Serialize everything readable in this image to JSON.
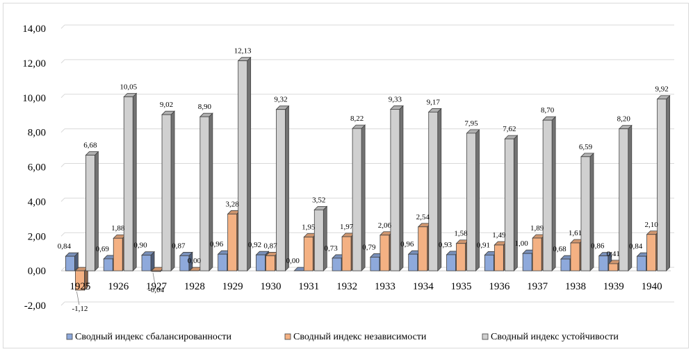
{
  "chart_data": {
    "type": "bar",
    "categories": [
      "1925",
      "1926",
      "1927",
      "1928",
      "1929",
      "1930",
      "1931",
      "1932",
      "1933",
      "1934",
      "1935",
      "1936",
      "1937",
      "1938",
      "1939",
      "1940"
    ],
    "series": [
      {
        "name": "Сводный индекс сбалансированности",
        "color": "#8EA9DB",
        "values": [
          0.84,
          0.69,
          0.9,
          0.87,
          0.96,
          0.92,
          0.0,
          0.73,
          0.79,
          0.96,
          0.93,
          0.91,
          1.0,
          0.68,
          0.86,
          0.84
        ],
        "labels": [
          "0,84",
          "0,69",
          "0,90",
          "0,87",
          "0,96",
          "0,92",
          "0,00",
          "0,73",
          "0,79",
          "0,96",
          "0,93",
          "0,91",
          "1,00",
          "0,68",
          "0,86",
          "0,84"
        ]
      },
      {
        "name": "Сводный индекс независимости",
        "color": "#F4B183",
        "values": [
          -1.12,
          1.88,
          -0.04,
          0.0,
          3.28,
          0.87,
          1.95,
          1.97,
          2.06,
          2.54,
          1.58,
          1.49,
          1.89,
          1.61,
          0.41,
          2.1
        ],
        "labels": [
          "-1,12",
          "1,88",
          "-0,04",
          "0,00",
          "3,28",
          "0,87",
          "1,95",
          "1,97",
          "2,06",
          "2,54",
          "1,58",
          "1,49",
          "1,89",
          "1,61",
          "0,41",
          "2,10"
        ]
      },
      {
        "name": "Сводный индекс устойчивости",
        "color": "#D0D0D0",
        "values": [
          6.68,
          10.05,
          9.02,
          8.9,
          12.13,
          9.32,
          3.52,
          8.22,
          9.33,
          9.17,
          7.95,
          7.62,
          8.7,
          6.59,
          8.2,
          9.92
        ],
        "labels": [
          "6,68",
          "10,05",
          "9,02",
          "8,90",
          "12,13",
          "9,32",
          "3,52",
          "8,22",
          "9,33",
          "9,17",
          "7,95",
          "7,62",
          "8,70",
          "6,59",
          "8,20",
          "9,92"
        ]
      }
    ],
    "yticks": [
      "-2,00",
      "0,00",
      "2,00",
      "4,00",
      "6,00",
      "8,00",
      "10,00",
      "12,00",
      "14,00"
    ],
    "ylim": [
      -2,
      14
    ],
    "grid": true,
    "legend_position": "bottom",
    "title": "",
    "xlabel": "",
    "ylabel": ""
  }
}
